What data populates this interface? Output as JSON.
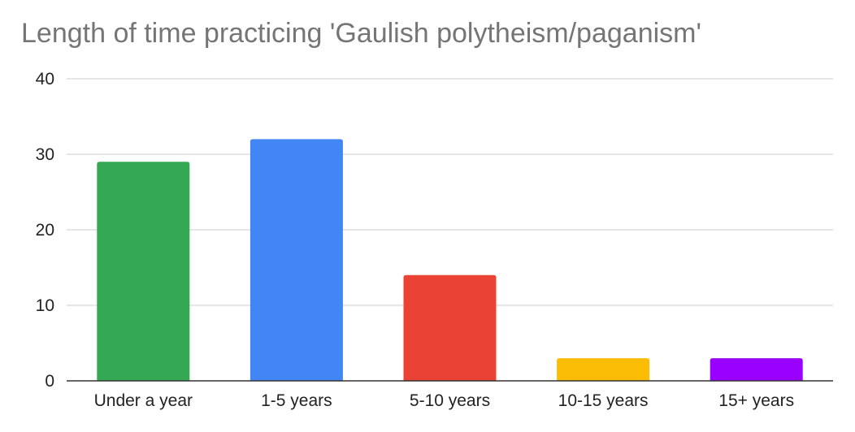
{
  "chart_data": {
    "type": "bar",
    "title": "Length of time practicing 'Gaulish polytheism/paganism'",
    "categories": [
      "Under a year",
      "1-5 years",
      "5-10 years",
      "10-15 years",
      "15+ years"
    ],
    "values": [
      29,
      32,
      14,
      3,
      3
    ],
    "colors": [
      "#34a853",
      "#4285f4",
      "#ea4335",
      "#fbbc04",
      "#9900ff"
    ],
    "xlabel": "",
    "ylabel": "",
    "ylim": [
      0,
      40
    ],
    "yticks": [
      0,
      10,
      20,
      30,
      40
    ],
    "grid": true,
    "legend": "none"
  }
}
